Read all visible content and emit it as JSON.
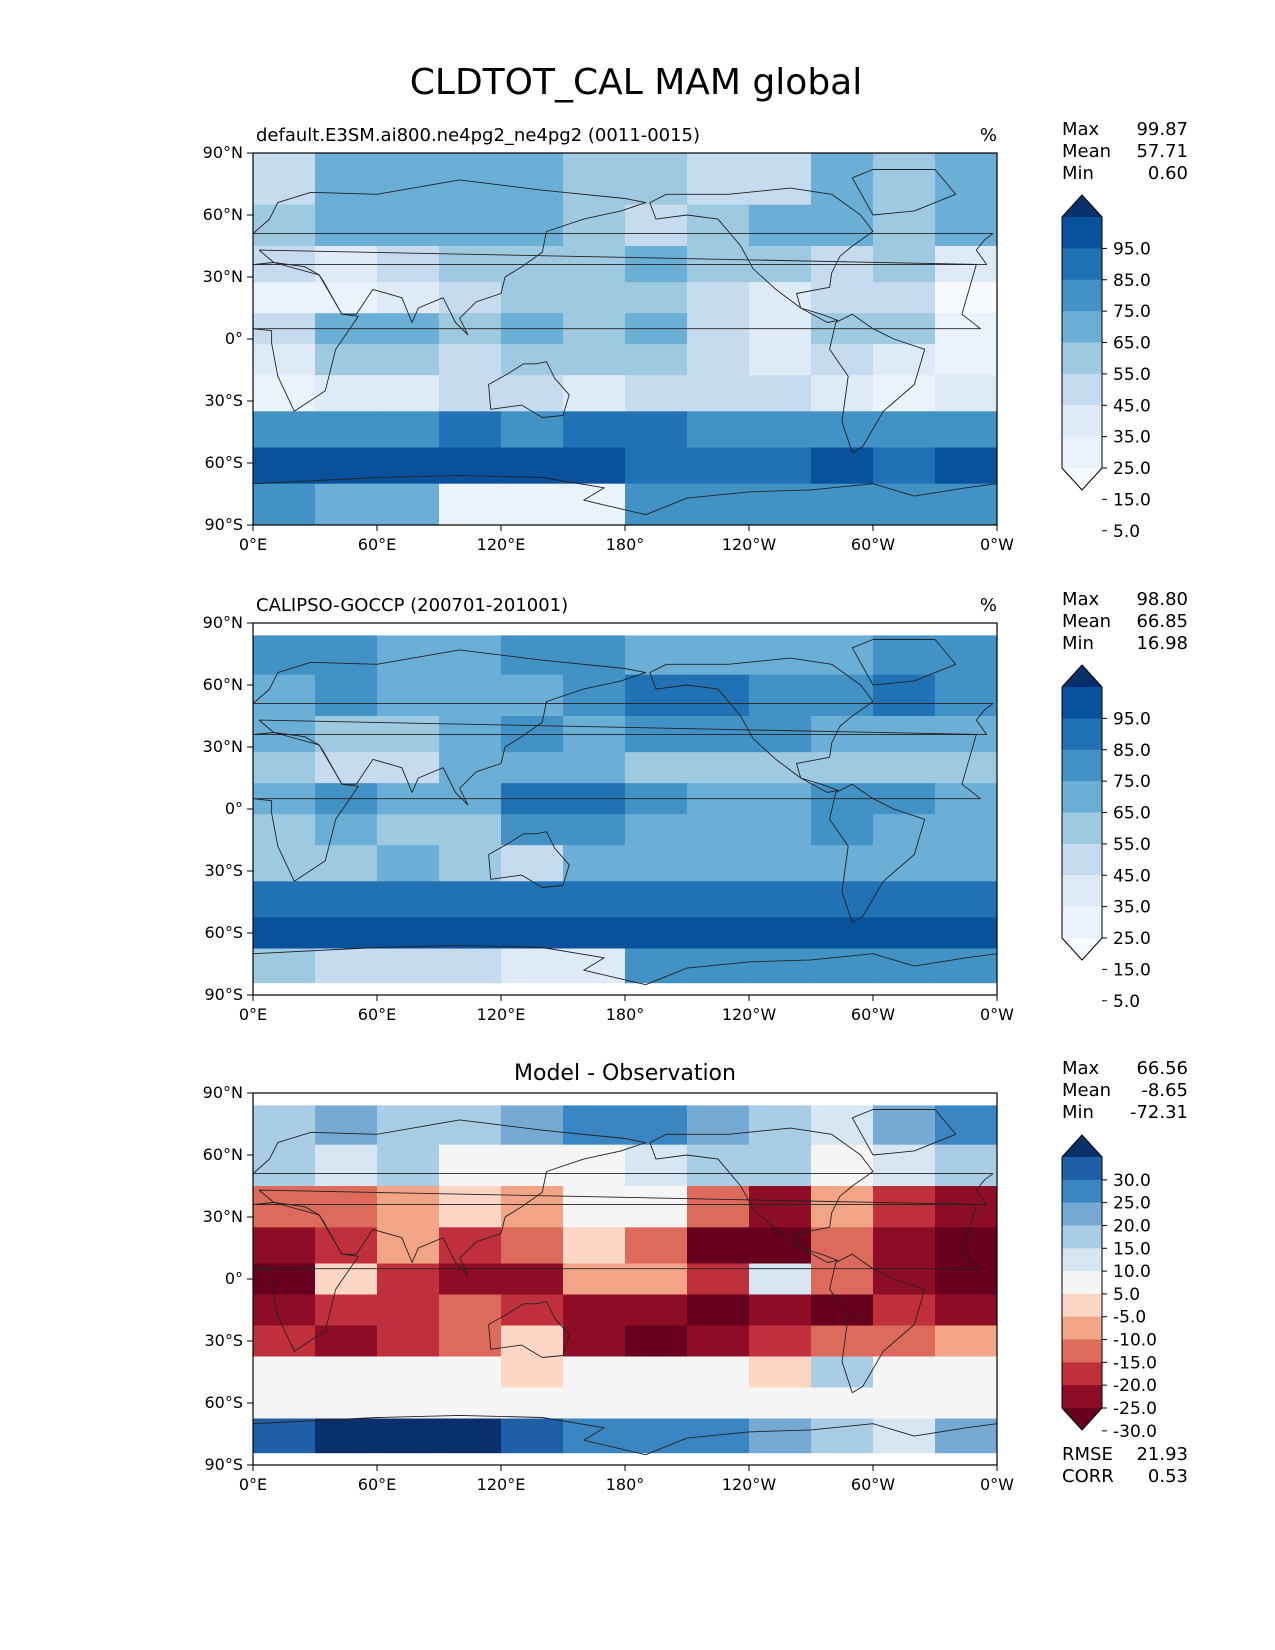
{
  "figure": {
    "title": "CLDTOT_CAL MAM global"
  },
  "chart_data": [
    {
      "type": "heatmap",
      "id": "panel1",
      "title": "default.E3SM.ai800.ne4pg2_ne4pg2 (0011-0015)",
      "units": "%",
      "stats": [
        {
          "label": "Max",
          "value": "99.87"
        },
        {
          "label": "Mean",
          "value": "57.71"
        },
        {
          "label": "Min",
          "value": "0.60"
        }
      ],
      "xticks": [
        "0°E",
        "60°E",
        "120°E",
        "180°",
        "120°W",
        "60°W",
        "0°W"
      ],
      "yticks": [
        "90°N",
        "60°N",
        "30°N",
        "0°",
        "30°S",
        "60°S",
        "90°S"
      ],
      "xlim": [
        0,
        360
      ],
      "ylim": [
        -90,
        90
      ],
      "colorbar": {
        "ticks": [
          "95.0",
          "85.0",
          "75.0",
          "65.0",
          "55.0",
          "45.0",
          "35.0",
          "25.0",
          "15.0",
          "5.0"
        ],
        "colors": [
          "#08306b",
          "#08519c",
          "#2171b5",
          "#4292c6",
          "#6baed6",
          "#9ecae1",
          "#c6dbef",
          "#deebf7",
          "#eaf2fb",
          "#f7fbff"
        ]
      },
      "lat_rows": [
        {
          "lat": 75,
          "values": [
            6,
            4,
            4,
            4,
            4,
            5,
            5,
            6,
            6,
            4,
            5,
            4
          ]
        },
        {
          "lat": 55,
          "values": [
            5,
            4,
            4,
            4,
            4,
            5,
            6,
            5,
            4,
            4,
            5,
            4
          ]
        },
        {
          "lat": 35,
          "values": [
            6,
            7,
            6,
            5,
            5,
            5,
            4,
            5,
            5,
            6,
            5,
            7
          ]
        },
        {
          "lat": 20,
          "values": [
            8,
            8,
            7,
            6,
            5,
            5,
            5,
            6,
            7,
            6,
            6,
            9
          ]
        },
        {
          "lat": 5,
          "values": [
            6,
            4,
            4,
            5,
            4,
            5,
            4,
            6,
            7,
            5,
            5,
            8
          ]
        },
        {
          "lat": -10,
          "values": [
            7,
            5,
            5,
            6,
            5,
            5,
            5,
            6,
            7,
            6,
            7,
            8
          ]
        },
        {
          "lat": -25,
          "values": [
            8,
            7,
            7,
            6,
            6,
            7,
            6,
            6,
            6,
            7,
            8,
            7
          ]
        },
        {
          "lat": -45,
          "values": [
            3,
            3,
            3,
            2,
            3,
            2,
            2,
            3,
            3,
            3,
            3,
            3
          ]
        },
        {
          "lat": -60,
          "values": [
            1,
            1,
            1,
            1,
            1,
            1,
            2,
            2,
            2,
            1,
            2,
            1
          ]
        },
        {
          "lat": -80,
          "values": [
            3,
            4,
            4,
            8,
            8,
            8,
            3,
            3,
            3,
            3,
            3,
            3
          ]
        }
      ]
    },
    {
      "type": "heatmap",
      "id": "panel2",
      "title": "CALIPSO-GOCCP (200701-201001)",
      "units": "%",
      "stats": [
        {
          "label": "Max",
          "value": "98.80"
        },
        {
          "label": "Mean",
          "value": "66.85"
        },
        {
          "label": "Min",
          "value": "16.98"
        }
      ],
      "xticks": [
        "0°E",
        "60°E",
        "120°E",
        "180°",
        "120°W",
        "60°W",
        "0°W"
      ],
      "yticks": [
        "90°N",
        "60°N",
        "30°N",
        "0°",
        "30°S",
        "60°S",
        "90°S"
      ],
      "xlim": [
        0,
        360
      ],
      "ylim": [
        -90,
        90
      ],
      "colorbar": {
        "ticks": [
          "95.0",
          "85.0",
          "75.0",
          "65.0",
          "55.0",
          "45.0",
          "35.0",
          "25.0",
          "15.0",
          "5.0"
        ],
        "colors": [
          "#08306b",
          "#08519c",
          "#2171b5",
          "#4292c6",
          "#6baed6",
          "#9ecae1",
          "#c6dbef",
          "#deebf7",
          "#eaf2fb",
          "#f7fbff"
        ]
      },
      "lat_rows": [
        {
          "lat": 75,
          "values": [
            3,
            3,
            4,
            4,
            3,
            3,
            4,
            4,
            4,
            4,
            3,
            3
          ]
        },
        {
          "lat": 55,
          "values": [
            4,
            3,
            4,
            4,
            4,
            3,
            2,
            2,
            3,
            3,
            2,
            3
          ]
        },
        {
          "lat": 35,
          "values": [
            4,
            5,
            5,
            4,
            3,
            4,
            3,
            3,
            3,
            4,
            4,
            4
          ]
        },
        {
          "lat": 20,
          "values": [
            5,
            6,
            6,
            4,
            4,
            4,
            5,
            5,
            5,
            5,
            5,
            5
          ]
        },
        {
          "lat": 5,
          "values": [
            4,
            3,
            4,
            4,
            2,
            2,
            3,
            4,
            4,
            3,
            3,
            4
          ]
        },
        {
          "lat": -10,
          "values": [
            5,
            4,
            5,
            5,
            3,
            3,
            4,
            4,
            4,
            3,
            4,
            4
          ]
        },
        {
          "lat": -25,
          "values": [
            5,
            5,
            4,
            5,
            6,
            4,
            4,
            4,
            4,
            4,
            4,
            4
          ]
        },
        {
          "lat": -45,
          "values": [
            2,
            2,
            2,
            2,
            2,
            2,
            2,
            2,
            2,
            2,
            2,
            2
          ]
        },
        {
          "lat": -60,
          "values": [
            1,
            1,
            1,
            1,
            1,
            1,
            1,
            1,
            1,
            1,
            1,
            1
          ]
        },
        {
          "lat": -75,
          "values": [
            5,
            6,
            6,
            6,
            7,
            7,
            3,
            3,
            3,
            3,
            3,
            3
          ]
        }
      ]
    },
    {
      "type": "heatmap",
      "id": "panel3",
      "title": "Model - Observation",
      "units": "",
      "stats": [
        {
          "label": "Max",
          "value": "66.56"
        },
        {
          "label": "Mean",
          "value": "-8.65"
        },
        {
          "label": "Min",
          "value": "-72.31"
        }
      ],
      "footer_stats": [
        {
          "label": "RMSE",
          "value": "21.93"
        },
        {
          "label": "CORR",
          "value": "0.53"
        }
      ],
      "xticks": [
        "0°E",
        "60°E",
        "120°E",
        "180°",
        "120°W",
        "60°W",
        "0°W"
      ],
      "yticks": [
        "90°N",
        "60°N",
        "30°N",
        "0°",
        "30°S",
        "60°S",
        "90°S"
      ],
      "xlim": [
        0,
        360
      ],
      "ylim": [
        -90,
        90
      ],
      "colorbar": {
        "ticks": [
          "30.0",
          "25.0",
          "20.0",
          "15.0",
          "10.0",
          "5.0",
          "-5.0",
          "-10.0",
          "-15.0",
          "-20.0",
          "-25.0",
          "-30.0"
        ],
        "colors": [
          "#08306b",
          "#1f5fa8",
          "#3a86c2",
          "#74aad4",
          "#aacde6",
          "#d6e6f2",
          "#f5f5f5",
          "#fbd6c4",
          "#f2a486",
          "#dc6b5b",
          "#c0303a",
          "#8c0d25",
          "#67001f"
        ]
      },
      "lat_rows": [
        {
          "lat": 75,
          "values": [
            4,
            3,
            4,
            4,
            3,
            2,
            2,
            3,
            4,
            5,
            3,
            2
          ]
        },
        {
          "lat": 55,
          "values": [
            4,
            5,
            4,
            6,
            6,
            6,
            5,
            4,
            4,
            6,
            5,
            4
          ]
        },
        {
          "lat": 35,
          "values": [
            9,
            9,
            8,
            7,
            8,
            6,
            6,
            9,
            11,
            8,
            10,
            11
          ]
        },
        {
          "lat": 15,
          "values": [
            11,
            10,
            8,
            10,
            9,
            7,
            9,
            12,
            12,
            9,
            11,
            12
          ]
        },
        {
          "lat": 0,
          "values": [
            12,
            7,
            10,
            11,
            11,
            8,
            8,
            10,
            5,
            9,
            11,
            12
          ]
        },
        {
          "lat": -15,
          "values": [
            11,
            10,
            10,
            9,
            10,
            11,
            11,
            12,
            11,
            12,
            10,
            11
          ]
        },
        {
          "lat": -30,
          "values": [
            10,
            11,
            10,
            9,
            7,
            11,
            12,
            11,
            10,
            9,
            9,
            8
          ]
        },
        {
          "lat": -45,
          "values": [
            6,
            6,
            6,
            6,
            7,
            6,
            6,
            6,
            7,
            4,
            6,
            6
          ]
        },
        {
          "lat": -60,
          "values": [
            6,
            6,
            6,
            6,
            6,
            6,
            6,
            6,
            6,
            6,
            6,
            6
          ]
        },
        {
          "lat": -75,
          "values": [
            1,
            0,
            0,
            0,
            1,
            2,
            2,
            2,
            3,
            4,
            5,
            3
          ]
        }
      ]
    }
  ]
}
